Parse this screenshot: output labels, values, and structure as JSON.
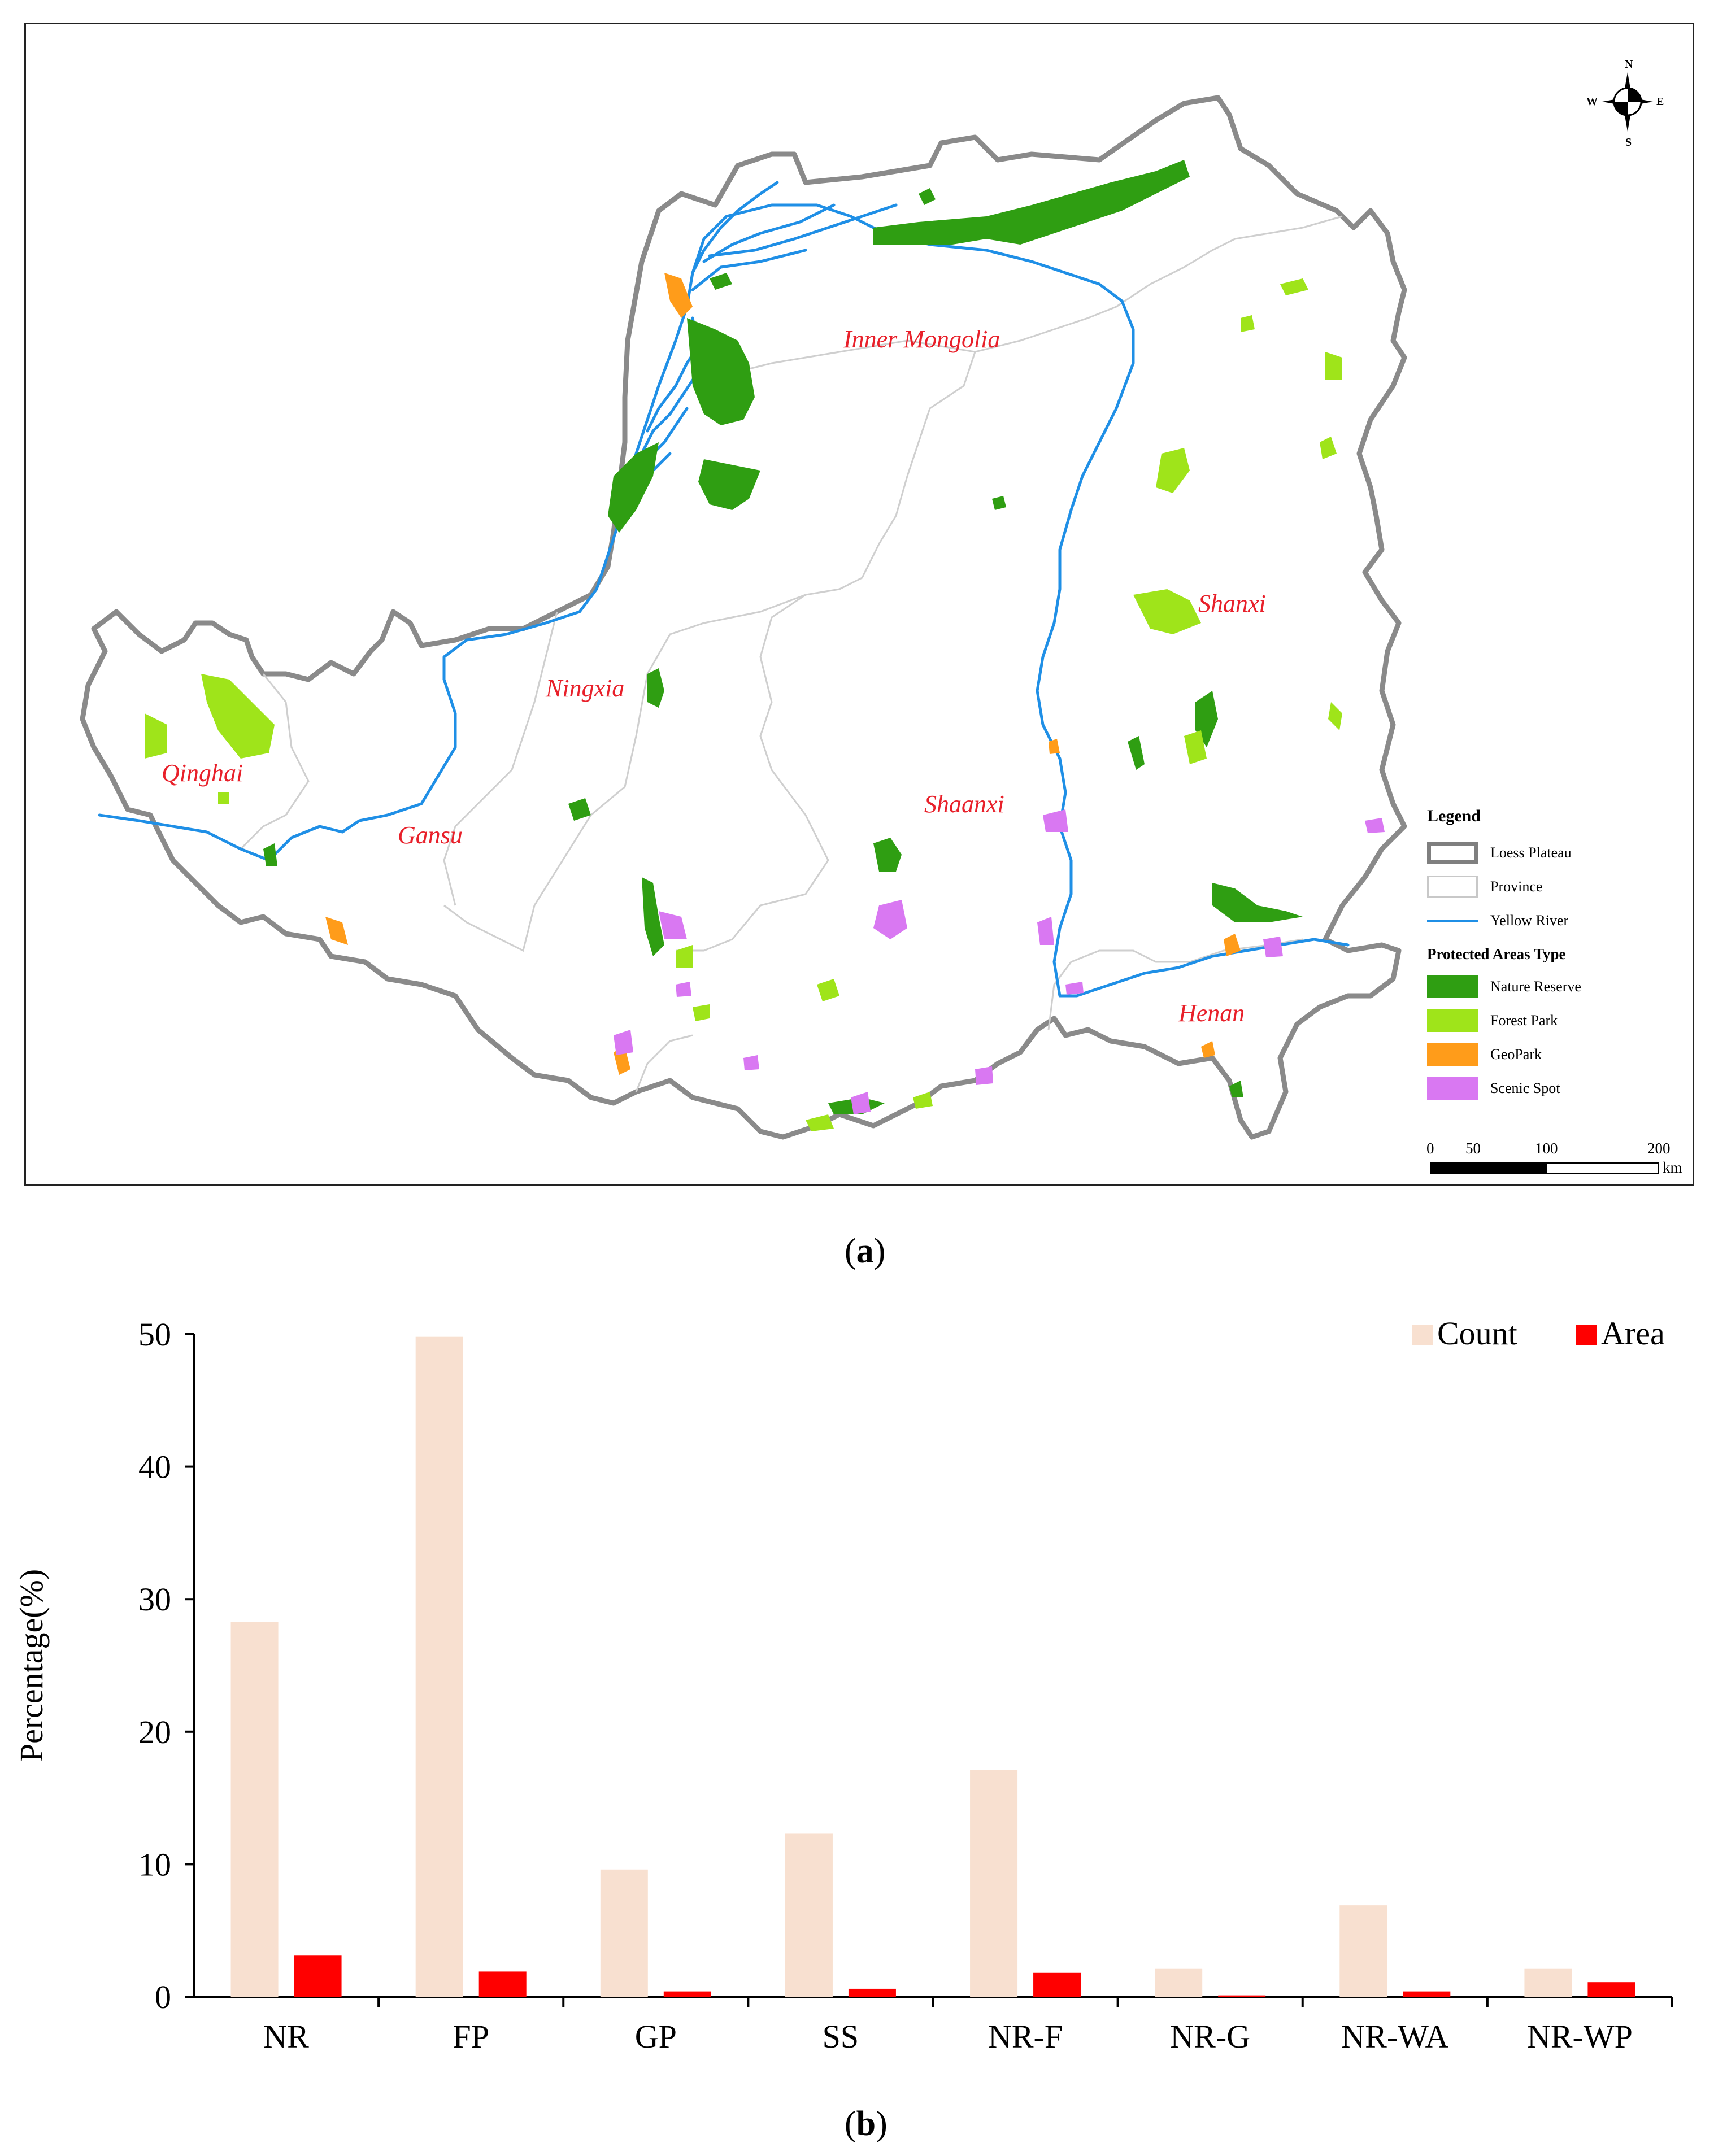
{
  "map": {
    "provinces": [
      "Inner Mongolia",
      "Shanxi",
      "Ningxia",
      "Shaanxi",
      "Qinghai",
      "Gansu",
      "Henan"
    ],
    "compass": {
      "n": "N",
      "s": "S",
      "e": "E",
      "w": "W"
    },
    "legend": {
      "title": "Legend",
      "items": [
        {
          "label": "Loess Plateau",
          "type": "boundary",
          "color": "#7f7f7f"
        },
        {
          "label": "Province",
          "type": "province",
          "color": "#c8c8c8"
        },
        {
          "label": "Yellow River",
          "type": "river",
          "color": "#1f8fe6"
        }
      ],
      "subtitle": "Protected Areas Type",
      "types": [
        {
          "label": "Nature Reserve",
          "color": "#2f9e12"
        },
        {
          "label": "Forest Park",
          "color": "#9fe41a"
        },
        {
          "label": "GeoPark",
          "color": "#ff9c1a"
        },
        {
          "label": "Scenic Spot",
          "color": "#d978f2"
        }
      ]
    },
    "scale": {
      "ticks": [
        "0",
        "50",
        "100",
        "200"
      ],
      "unit": "km"
    },
    "caption_letter": "a"
  },
  "chart_data": {
    "type": "bar",
    "categories": [
      "NR",
      "FP",
      "GP",
      "SS",
      "NR-F",
      "NR-G",
      "NR-WA",
      "NR-WP"
    ],
    "series": [
      {
        "name": "Count",
        "color": "#f8e0d0",
        "values": [
          28.3,
          49.8,
          9.6,
          12.3,
          17.1,
          2.1,
          6.9,
          2.1
        ]
      },
      {
        "name": "Area",
        "color": "#ff0000",
        "values": [
          3.1,
          1.9,
          0.4,
          0.6,
          1.8,
          0.1,
          0.4,
          1.1
        ]
      }
    ],
    "ylabel": "Percentage(%)",
    "ylim": [
      0,
      50
    ],
    "yticks": [
      "0",
      "10",
      "20",
      "30",
      "40",
      "50"
    ],
    "legend_position": "top-right",
    "caption_letter": "b"
  }
}
